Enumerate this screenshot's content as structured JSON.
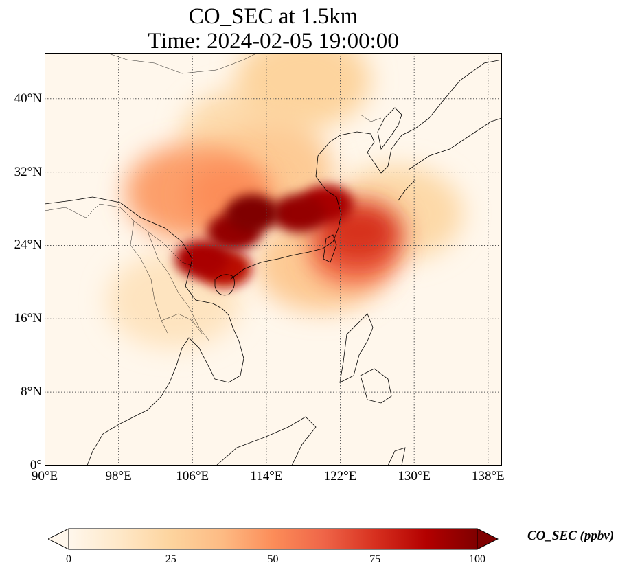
{
  "title": {
    "line1": "CO_SEC at 1.5km",
    "line2": "Time: 2024-02-05 19:00:00"
  },
  "map": {
    "projection": "PlateCarree",
    "lon_range": [
      90,
      139.5
    ],
    "lat_range": [
      0,
      45
    ],
    "lon_ticks": [
      {
        "value": 90,
        "label": "90°E"
      },
      {
        "value": 98,
        "label": "98°E"
      },
      {
        "value": 106,
        "label": "106°E"
      },
      {
        "value": 114,
        "label": "114°E"
      },
      {
        "value": 122,
        "label": "122°E"
      },
      {
        "value": 130,
        "label": "130°E"
      },
      {
        "value": 138,
        "label": "138°E"
      }
    ],
    "lat_ticks": [
      {
        "value": 0,
        "label": "0°"
      },
      {
        "value": 8,
        "label": "8°N"
      },
      {
        "value": 16,
        "label": "16°N"
      },
      {
        "value": 24,
        "label": "24°N"
      },
      {
        "value": 32,
        "label": "32°N"
      },
      {
        "value": 40,
        "label": "40°N"
      }
    ],
    "gridlines": "dotted",
    "field_variable": "CO_SEC",
    "plumes": [
      {
        "lon": 112.5,
        "lat": 27.5,
        "value": 100
      },
      {
        "lon": 110.5,
        "lat": 25.5,
        "value": 95
      },
      {
        "lon": 117.5,
        "lat": 27.5,
        "value": 95
      },
      {
        "lon": 120.5,
        "lat": 28.5,
        "value": 90
      },
      {
        "lon": 107,
        "lat": 22.5,
        "value": 90
      },
      {
        "lon": 109.5,
        "lat": 21.5,
        "value": 85
      },
      {
        "lon": 124,
        "lat": 25.5,
        "value": 75
      },
      {
        "lon": 123.5,
        "lat": 23,
        "value": 60
      },
      {
        "lon": 110,
        "lat": 29.5,
        "value": 50
      },
      {
        "lon": 106,
        "lat": 29.8,
        "value": 45
      },
      {
        "lon": 114,
        "lat": 32,
        "value": 30
      },
      {
        "lon": 112,
        "lat": 36,
        "value": 20
      },
      {
        "lon": 118,
        "lat": 42,
        "value": 25
      },
      {
        "lon": 128,
        "lat": 27.5,
        "value": 22
      },
      {
        "lon": 120,
        "lat": 22,
        "value": 30
      },
      {
        "lon": 104,
        "lat": 18,
        "value": 15
      }
    ]
  },
  "colorbar": {
    "label": "CO_SEC (ppbv)",
    "cmap": "OrRd",
    "range": [
      0,
      100
    ],
    "ticks": [
      "0",
      "25",
      "50",
      "75",
      "100"
    ],
    "extend": "both",
    "colors": [
      "#fff7ec",
      "#fee8c8",
      "#fdd49e",
      "#fdbb84",
      "#fc8d59",
      "#ef6548",
      "#d7301f",
      "#b30000",
      "#7f0000"
    ]
  }
}
